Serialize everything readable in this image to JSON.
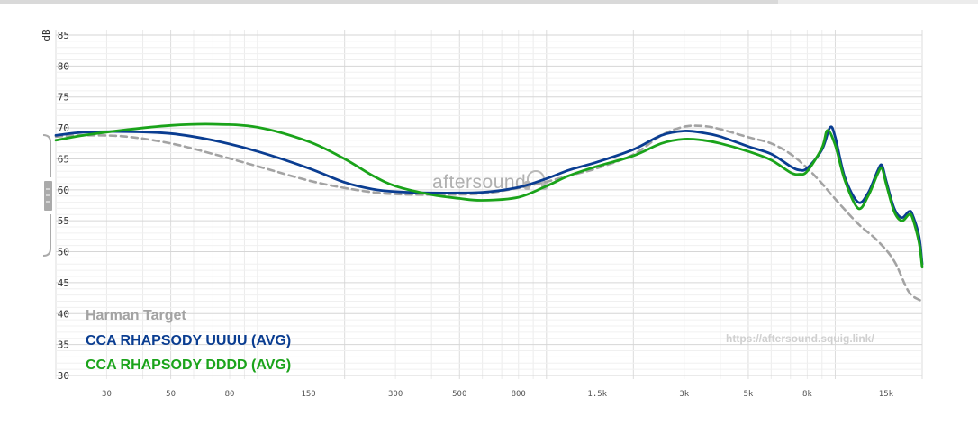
{
  "watermark": "aftersound",
  "url": "https://aftersound.squig.link/",
  "chart_data": {
    "type": "line",
    "ylabel": "dB",
    "xscale": "log",
    "xlim": [
      20,
      20000
    ],
    "ylim": [
      30,
      85
    ],
    "grid": true,
    "legend_position": "bottom-left",
    "y_ticks": [
      85,
      80,
      75,
      70,
      65,
      60,
      55,
      50,
      45,
      40,
      35,
      30
    ],
    "x_ticks": [
      {
        "value": 30,
        "label": "30"
      },
      {
        "value": 50,
        "label": "50"
      },
      {
        "value": 80,
        "label": "80"
      },
      {
        "value": 150,
        "label": "150"
      },
      {
        "value": 300,
        "label": "300"
      },
      {
        "value": 500,
        "label": "500"
      },
      {
        "value": 800,
        "label": "800"
      },
      {
        "value": 1500,
        "label": "1.5k"
      },
      {
        "value": 3000,
        "label": "3k"
      },
      {
        "value": 5000,
        "label": "5k"
      },
      {
        "value": 8000,
        "label": "8k"
      },
      {
        "value": 15000,
        "label": "15k"
      }
    ],
    "series": [
      {
        "name": "Harman Target",
        "color": "#a3a3a3",
        "dashed": true,
        "points": [
          [
            20,
            68.6
          ],
          [
            25,
            68.8
          ],
          [
            35,
            68.6
          ],
          [
            50,
            67.5
          ],
          [
            70,
            65.8
          ],
          [
            100,
            63.8
          ],
          [
            150,
            61.5
          ],
          [
            200,
            60.3
          ],
          [
            250,
            59.6
          ],
          [
            300,
            59.3
          ],
          [
            400,
            59.2
          ],
          [
            600,
            59.4
          ],
          [
            800,
            60.3
          ],
          [
            1000,
            61.3
          ],
          [
            1200,
            62.3
          ],
          [
            1500,
            63.5
          ],
          [
            2000,
            65.7
          ],
          [
            2500,
            68.8
          ],
          [
            3000,
            70.2
          ],
          [
            3500,
            70.3
          ],
          [
            4000,
            69.8
          ],
          [
            5000,
            68.5
          ],
          [
            6000,
            67.5
          ],
          [
            7000,
            65.8
          ],
          [
            8000,
            63.5
          ],
          [
            9000,
            61.0
          ],
          [
            10000,
            58.5
          ],
          [
            12000,
            54.5
          ],
          [
            14000,
            51.8
          ],
          [
            16000,
            48.5
          ],
          [
            18000,
            43.5
          ],
          [
            20000,
            42.0
          ]
        ]
      },
      {
        "name": "CCA RHAPSODY UUUU (AVG)",
        "color": "#0a3d91",
        "dashed": false,
        "points": [
          [
            20,
            68.8
          ],
          [
            25,
            69.3
          ],
          [
            35,
            69.4
          ],
          [
            50,
            69.1
          ],
          [
            70,
            68.0
          ],
          [
            100,
            66.2
          ],
          [
            150,
            63.5
          ],
          [
            200,
            61.2
          ],
          [
            250,
            60.1
          ],
          [
            300,
            59.7
          ],
          [
            400,
            59.5
          ],
          [
            600,
            59.6
          ],
          [
            800,
            60.4
          ],
          [
            1000,
            61.8
          ],
          [
            1200,
            63.2
          ],
          [
            1500,
            64.5
          ],
          [
            2000,
            66.5
          ],
          [
            2500,
            68.8
          ],
          [
            3000,
            69.5
          ],
          [
            3500,
            69.2
          ],
          [
            4000,
            68.6
          ],
          [
            5000,
            67.0
          ],
          [
            6000,
            65.8
          ],
          [
            7000,
            63.8
          ],
          [
            7500,
            63.2
          ],
          [
            8000,
            63.5
          ],
          [
            9000,
            66.5
          ],
          [
            9600,
            70.1
          ],
          [
            10000,
            68.5
          ],
          [
            10800,
            62.0
          ],
          [
            12000,
            58.0
          ],
          [
            13000,
            59.5
          ],
          [
            14000,
            63.0
          ],
          [
            14500,
            64.0
          ],
          [
            15000,
            61.5
          ],
          [
            16000,
            57.0
          ],
          [
            17000,
            55.5
          ],
          [
            18000,
            56.5
          ],
          [
            18500,
            56.0
          ],
          [
            19500,
            52.5
          ],
          [
            20000,
            48.0
          ]
        ]
      },
      {
        "name": "CCA RHAPSODY DDDD (AVG)",
        "color": "#1aa31a",
        "dashed": false,
        "points": [
          [
            20,
            68.0
          ],
          [
            25,
            68.8
          ],
          [
            35,
            69.7
          ],
          [
            50,
            70.4
          ],
          [
            70,
            70.6
          ],
          [
            100,
            70.1
          ],
          [
            150,
            67.8
          ],
          [
            200,
            65.0
          ],
          [
            250,
            62.3
          ],
          [
            300,
            60.6
          ],
          [
            400,
            59.2
          ],
          [
            500,
            58.6
          ],
          [
            600,
            58.3
          ],
          [
            800,
            58.8
          ],
          [
            1000,
            60.6
          ],
          [
            1200,
            62.3
          ],
          [
            1500,
            63.8
          ],
          [
            2000,
            65.5
          ],
          [
            2500,
            67.5
          ],
          [
            3000,
            68.2
          ],
          [
            3500,
            68.0
          ],
          [
            4000,
            67.5
          ],
          [
            5000,
            66.2
          ],
          [
            6000,
            64.8
          ],
          [
            7000,
            62.8
          ],
          [
            7500,
            62.5
          ],
          [
            8000,
            63.0
          ],
          [
            9000,
            66.8
          ],
          [
            9400,
            69.6
          ],
          [
            10000,
            67.2
          ],
          [
            10800,
            61.5
          ],
          [
            12000,
            57.0
          ],
          [
            13000,
            59.0
          ],
          [
            14000,
            62.5
          ],
          [
            14500,
            63.5
          ],
          [
            15000,
            61.0
          ],
          [
            16000,
            56.5
          ],
          [
            17000,
            55.0
          ],
          [
            18000,
            56.0
          ],
          [
            18500,
            55.5
          ],
          [
            19500,
            51.5
          ],
          [
            20000,
            47.5
          ]
        ]
      }
    ]
  }
}
